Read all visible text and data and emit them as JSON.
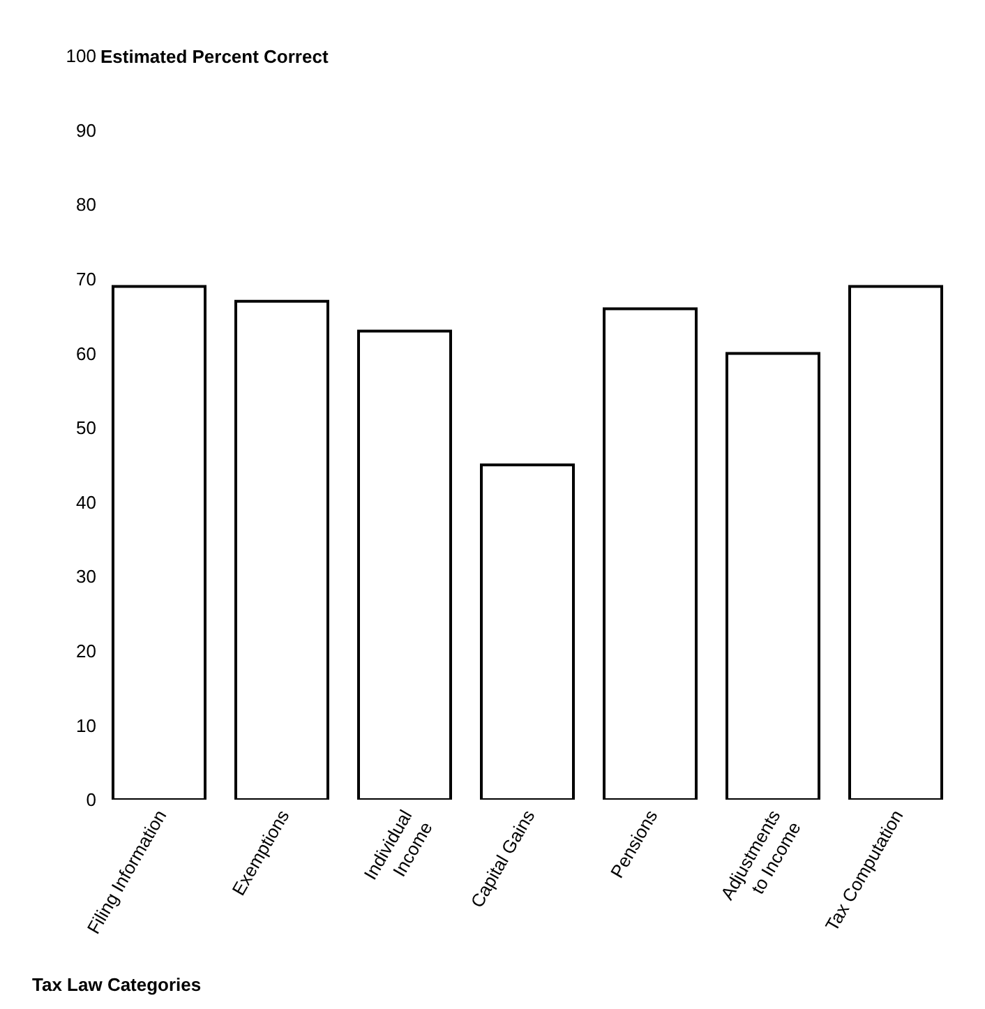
{
  "chart_data": {
    "type": "bar",
    "ylabel": "Estimated Percent Correct",
    "xlabel": "Tax Law Categories",
    "categories": [
      "Filing Information",
      "Exemptions",
      "Individual\nIncome",
      "Capital Gains",
      "Pensions",
      "Adjustments\nto Income",
      "Tax Computation"
    ],
    "values": [
      69,
      67,
      63,
      45,
      66,
      60,
      69
    ],
    "color": "#ffffff",
    "ylim": [
      0,
      100
    ],
    "yticks": [
      0,
      10,
      20,
      30,
      40,
      50,
      60,
      70,
      80,
      90,
      100
    ]
  }
}
